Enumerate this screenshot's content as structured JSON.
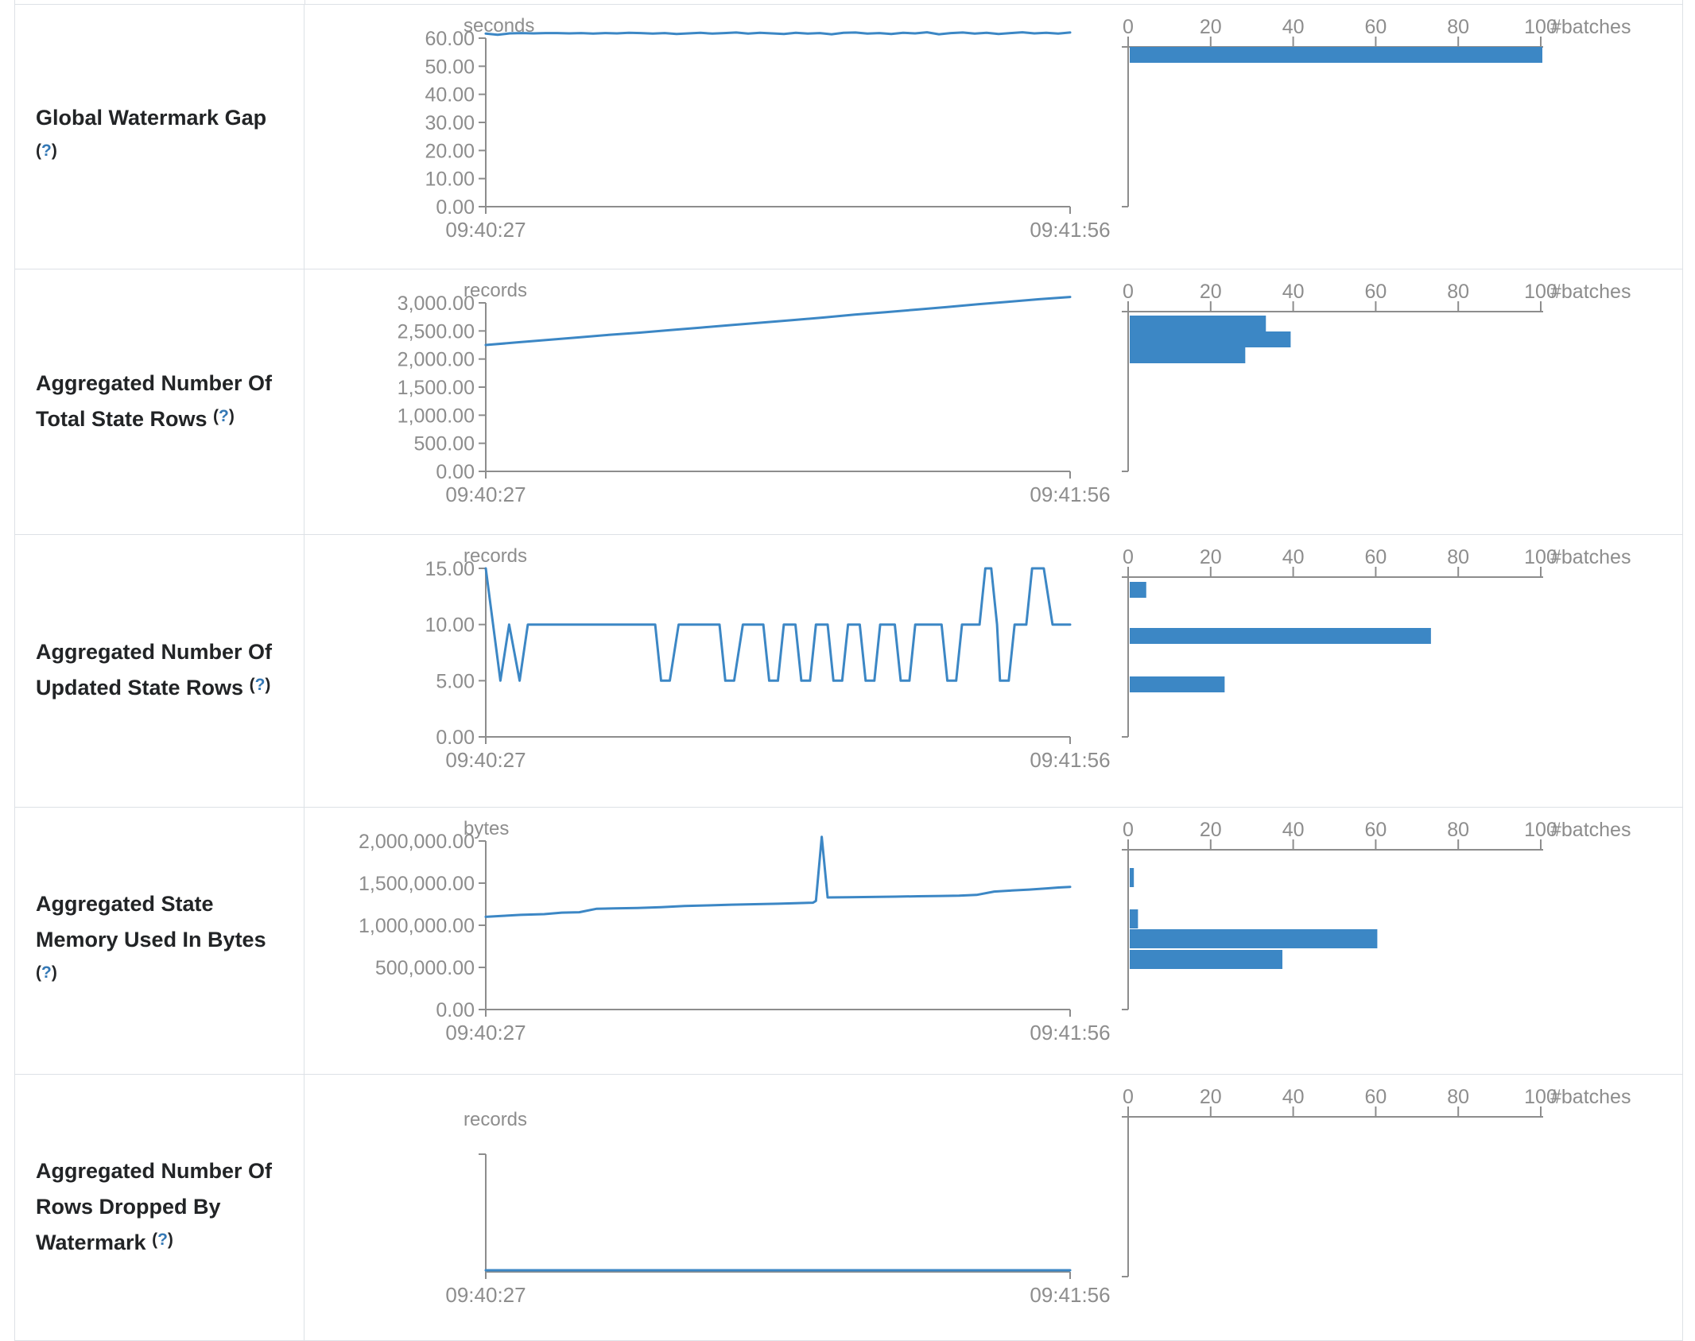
{
  "colors": {
    "accent_blue": "#3c87c5",
    "axis_gray": "#8d8d8d",
    "border_gray": "#dde1e6",
    "label_dark": "#222426",
    "help_blue": "#3478b5"
  },
  "help": {
    "open": "(",
    "q": "?",
    "close": ")"
  },
  "time_axis": {
    "start": "09:40:27",
    "end": "09:41:56"
  },
  "hist_axis": {
    "ticks": [
      "0",
      "20",
      "40",
      "60",
      "80",
      "100"
    ],
    "label": "#batches"
  },
  "table": {
    "rows": [
      {
        "label": "Global Watermark Gap",
        "unit": "seconds",
        "timeline": {
          "yticks": [
            {
              "v": 60,
              "label": "60.00"
            },
            {
              "v": 50,
              "label": "50.00"
            },
            {
              "v": 40,
              "label": "40.00"
            },
            {
              "v": 30,
              "label": "30.00"
            },
            {
              "v": 20,
              "label": "20.00"
            },
            {
              "v": 10,
              "label": "10.00"
            },
            {
              "v": 0,
              "label": "0.00"
            }
          ],
          "values": [
            61.6,
            61.2,
            61.7,
            61.8,
            61.7,
            61.8,
            61.8,
            61.7,
            61.8,
            61.6,
            61.8,
            61.7,
            61.9,
            61.8,
            61.6,
            61.8,
            61.5,
            61.7,
            61.9,
            61.6,
            61.8,
            62.0,
            61.6,
            61.9,
            61.7,
            61.5,
            61.9,
            61.6,
            61.8,
            61.4,
            61.9,
            62.0,
            61.6,
            61.8,
            61.5,
            61.9,
            61.7,
            62.1,
            61.4,
            61.8,
            62.0,
            61.6,
            61.9,
            61.5,
            61.8,
            62.1,
            61.7,
            61.9,
            61.6,
            62.0
          ]
        },
        "histogram": {
          "bars": [
            {
              "bin": "≈60–62",
              "count": 100
            }
          ]
        }
      },
      {
        "label": "Aggregated Number Of Total State Rows",
        "unit": "records",
        "timeline": {
          "yticks": [
            {
              "v": 3000,
              "label": "3,000.00"
            },
            {
              "v": 2500,
              "label": "2,500.00"
            },
            {
              "v": 2000,
              "label": "2,000.00"
            },
            {
              "v": 1500,
              "label": "1,500.00"
            },
            {
              "v": 1000,
              "label": "1,000.00"
            },
            {
              "v": 500,
              "label": "500.00"
            },
            {
              "v": 0,
              "label": "0.00"
            }
          ],
          "values": [
            2250,
            2295,
            2340,
            2385,
            2430,
            2470,
            2515,
            2560,
            2605,
            2650,
            2695,
            2740,
            2790,
            2835,
            2880,
            2925,
            2975,
            3020,
            3065,
            3105
          ]
        },
        "histogram": {
          "bars": [
            {
              "bin": "2,817–3,100",
              "count": 33
            },
            {
              "bin": "2,533–2,817",
              "count": 39
            },
            {
              "bin": "2,250–2,533",
              "count": 28
            }
          ]
        }
      },
      {
        "label": "Aggregated Number Of Updated State Rows",
        "unit": "records",
        "timeline": {
          "yticks": [
            {
              "v": 15,
              "label": "15.00"
            },
            {
              "v": 10,
              "label": "10.00"
            },
            {
              "v": 5,
              "label": "5.00"
            },
            {
              "v": 0,
              "label": "0.00"
            }
          ],
          "points": [
            [
              0,
              15
            ],
            [
              0.025,
              5
            ],
            [
              0.04,
              10
            ],
            [
              0.058,
              5
            ],
            [
              0.072,
              10
            ],
            [
              0.29,
              10
            ],
            [
              0.3,
              5
            ],
            [
              0.315,
              5
            ],
            [
              0.33,
              10
            ],
            [
              0.4,
              10
            ],
            [
              0.41,
              5
            ],
            [
              0.425,
              5
            ],
            [
              0.44,
              10
            ],
            [
              0.475,
              10
            ],
            [
              0.485,
              5
            ],
            [
              0.5,
              5
            ],
            [
              0.51,
              10
            ],
            [
              0.53,
              10
            ],
            [
              0.54,
              5
            ],
            [
              0.555,
              5
            ],
            [
              0.565,
              10
            ],
            [
              0.585,
              10
            ],
            [
              0.595,
              5
            ],
            [
              0.61,
              5
            ],
            [
              0.62,
              10
            ],
            [
              0.64,
              10
            ],
            [
              0.65,
              5
            ],
            [
              0.665,
              5
            ],
            [
              0.675,
              10
            ],
            [
              0.7,
              10
            ],
            [
              0.71,
              5
            ],
            [
              0.725,
              5
            ],
            [
              0.735,
              10
            ],
            [
              0.78,
              10
            ],
            [
              0.79,
              5
            ],
            [
              0.805,
              5
            ],
            [
              0.815,
              10
            ],
            [
              0.845,
              10
            ],
            [
              0.855,
              15
            ],
            [
              0.865,
              15
            ],
            [
              0.875,
              10
            ],
            [
              0.88,
              5
            ],
            [
              0.895,
              5
            ],
            [
              0.905,
              10
            ],
            [
              0.925,
              10
            ],
            [
              0.935,
              15
            ],
            [
              0.955,
              15
            ],
            [
              0.97,
              10
            ],
            [
              1,
              10
            ]
          ]
        },
        "histogram": {
          "bars": [
            {
              "bin": "15",
              "count": 4
            },
            {
              "bin": "10",
              "count": 73
            },
            {
              "bin": "5",
              "count": 23
            }
          ]
        }
      },
      {
        "label": "Aggregated State Memory Used In Bytes",
        "unit": "bytes",
        "timeline": {
          "yticks": [
            {
              "v": 2000000,
              "label": "2,000,000.00"
            },
            {
              "v": 1500000,
              "label": "1,500,000.00"
            },
            {
              "v": 1000000,
              "label": "1,000,000.00"
            },
            {
              "v": 500000,
              "label": "500,000.00"
            },
            {
              "v": 0,
              "label": "0.00"
            }
          ],
          "points": [
            [
              0,
              1100000
            ],
            [
              0.03,
              1112000
            ],
            [
              0.06,
              1124000
            ],
            [
              0.1,
              1132000
            ],
            [
              0.13,
              1150000
            ],
            [
              0.16,
              1155000
            ],
            [
              0.19,
              1196000
            ],
            [
              0.22,
              1200000
            ],
            [
              0.26,
              1205000
            ],
            [
              0.3,
              1215000
            ],
            [
              0.34,
              1228000
            ],
            [
              0.38,
              1236000
            ],
            [
              0.42,
              1244000
            ],
            [
              0.46,
              1250000
            ],
            [
              0.5,
              1256000
            ],
            [
              0.53,
              1262000
            ],
            [
              0.56,
              1268000
            ],
            [
              0.565,
              1290000
            ],
            [
              0.575,
              2050000
            ],
            [
              0.585,
              1330000
            ],
            [
              0.62,
              1332000
            ],
            [
              0.66,
              1336000
            ],
            [
              0.7,
              1340000
            ],
            [
              0.74,
              1344000
            ],
            [
              0.78,
              1348000
            ],
            [
              0.81,
              1352000
            ],
            [
              0.84,
              1360000
            ],
            [
              0.87,
              1400000
            ],
            [
              0.9,
              1412000
            ],
            [
              0.93,
              1424000
            ],
            [
              0.96,
              1438000
            ],
            [
              0.98,
              1448000
            ],
            [
              1,
              1456000
            ]
          ]
        },
        "histogram": {
          "bars": [
            {
              "bin": "1.86M–2.05M",
              "count": 1
            },
            {
              "bin": "1.48M–1.67M",
              "count": 2
            },
            {
              "bin": "1.29M–1.48M",
              "count": 60
            },
            {
              "bin": "1.10M–1.29M",
              "count": 37
            }
          ]
        }
      },
      {
        "label": "Aggregated Number Of Rows Dropped By Watermark",
        "unit": "records",
        "timeline": {
          "yticks": [],
          "points": [
            [
              0,
              0
            ],
            [
              1,
              0
            ]
          ]
        },
        "histogram": {
          "bars": []
        }
      }
    ]
  }
}
